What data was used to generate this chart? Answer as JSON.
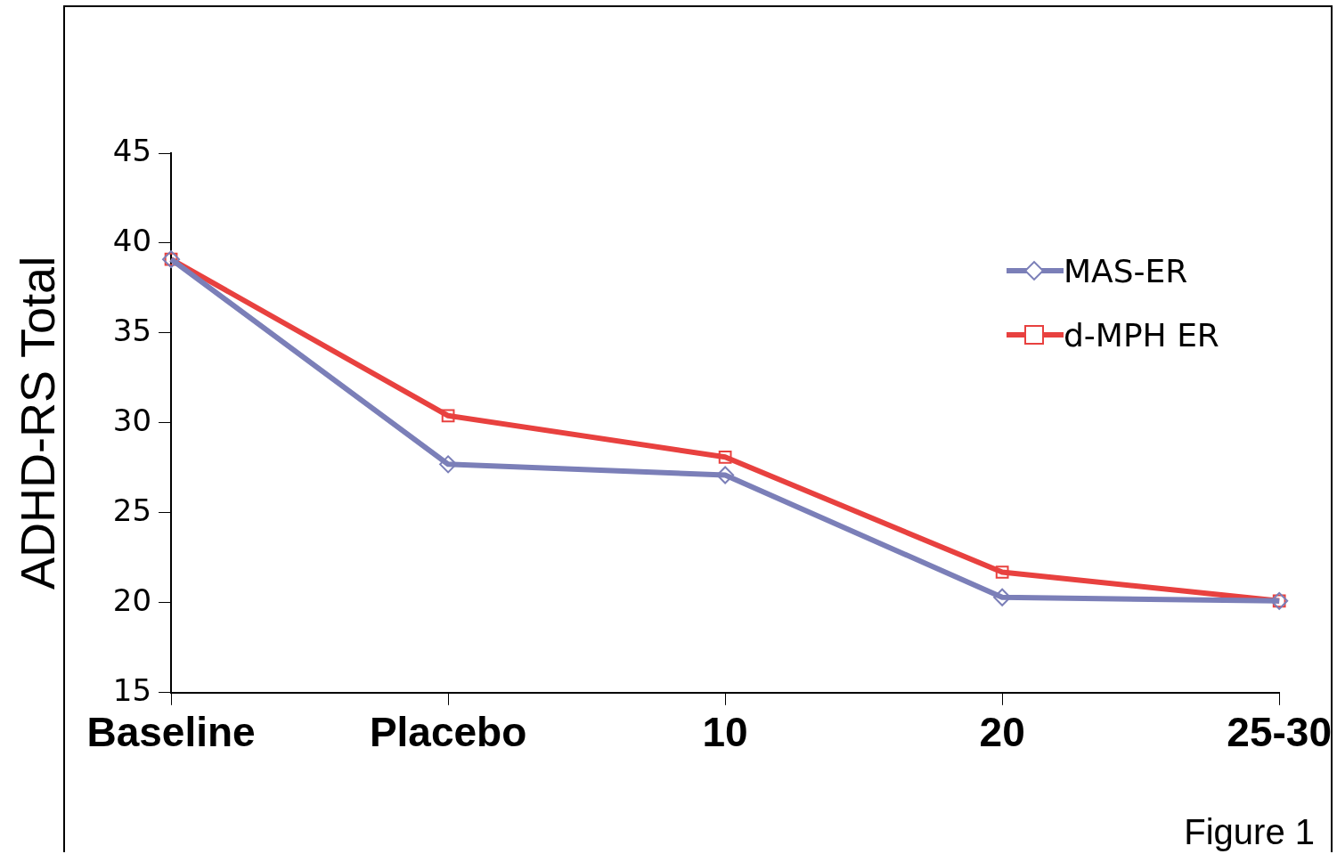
{
  "chart_data": {
    "type": "line",
    "ylabel": "ADHD-RS Total",
    "categories": [
      "Baseline",
      "Placebo",
      "10",
      "20",
      "25-30"
    ],
    "series": [
      {
        "name": "MAS-ER",
        "color": "#7b7fb8",
        "marker": "diamond",
        "values": [
          39.1,
          27.7,
          27.1,
          20.3,
          20.1
        ]
      },
      {
        "name": "d-MPH ER",
        "color": "#e8413f",
        "marker": "square",
        "values": [
          39.1,
          30.4,
          28.1,
          21.7,
          20.1
        ]
      }
    ],
    "ylim": [
      15,
      45
    ],
    "yticks": [
      15,
      20,
      25,
      30,
      35,
      40,
      45
    ],
    "grid": false,
    "legend": "top right",
    "line_style": "solid",
    "annotations": [
      "Figure 1"
    ]
  }
}
